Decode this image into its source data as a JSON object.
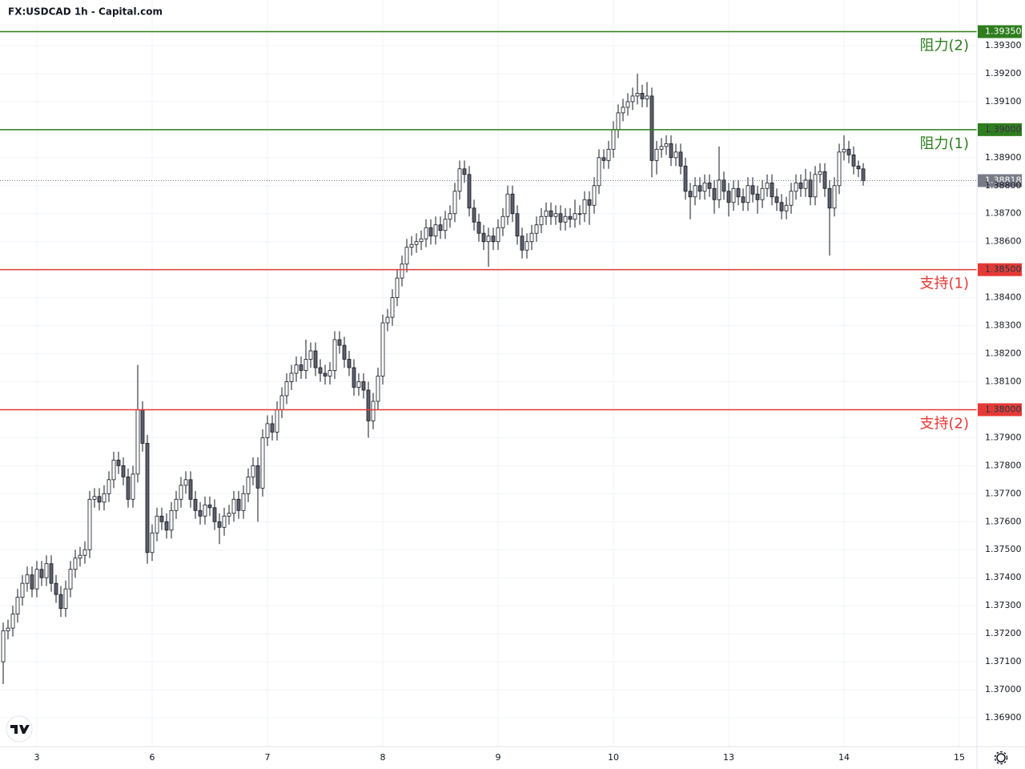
{
  "chart_data": {
    "type": "candlestick",
    "title": "FX:USDCAD 1h - Capital.com",
    "ylim": [
      1.36797,
      1.39463
    ],
    "yticks": [
      {
        "value": 1.369,
        "label": "1.36900"
      },
      {
        "value": 1.37,
        "label": "1.37000"
      },
      {
        "value": 1.371,
        "label": "1.37100"
      },
      {
        "value": 1.372,
        "label": "1.37200"
      },
      {
        "value": 1.373,
        "label": "1.37300"
      },
      {
        "value": 1.374,
        "label": "1.37400"
      },
      {
        "value": 1.375,
        "label": "1.37500"
      },
      {
        "value": 1.376,
        "label": "1.37600"
      },
      {
        "value": 1.377,
        "label": "1.37700"
      },
      {
        "value": 1.378,
        "label": "1.37800"
      },
      {
        "value": 1.379,
        "label": "1.37900"
      },
      {
        "value": 1.38,
        "label": "1.38000"
      },
      {
        "value": 1.381,
        "label": "1.38100"
      },
      {
        "value": 1.382,
        "label": "1.38200"
      },
      {
        "value": 1.383,
        "label": "1.38300"
      },
      {
        "value": 1.384,
        "label": "1.38400"
      },
      {
        "value": 1.385,
        "label": "1.38500"
      },
      {
        "value": 1.386,
        "label": "1.38600"
      },
      {
        "value": 1.387,
        "label": "1.38700"
      },
      {
        "value": 1.388,
        "label": "1.38800"
      },
      {
        "value": 1.389,
        "label": "1.38900"
      },
      {
        "value": 1.39,
        "label": "1.39000"
      },
      {
        "value": 1.391,
        "label": "1.39100"
      },
      {
        "value": 1.392,
        "label": "1.39200"
      },
      {
        "value": 1.393,
        "label": "1.39300"
      }
    ],
    "grid": true,
    "up_color": "#ffffff",
    "down_color": "#5d606b",
    "wick_color": "#131722",
    "categories": [
      null,
      null,
      null,
      null,
      null,
      null,
      null,
      "3",
      null,
      null,
      null,
      null,
      null,
      null,
      null,
      null,
      null,
      null,
      null,
      null,
      null,
      null,
      null,
      null,
      null,
      null,
      null,
      null,
      null,
      null,
      null,
      "6",
      null,
      null,
      null,
      null,
      null,
      null,
      null,
      null,
      null,
      null,
      null,
      null,
      null,
      null,
      null,
      null,
      null,
      null,
      null,
      null,
      null,
      null,
      null,
      "7",
      null,
      null,
      null,
      null,
      null,
      null,
      null,
      null,
      null,
      null,
      null,
      null,
      null,
      null,
      null,
      null,
      null,
      null,
      null,
      null,
      null,
      null,
      null,
      "8",
      null,
      null,
      null,
      null,
      null,
      null,
      null,
      null,
      null,
      null,
      null,
      null,
      null,
      null,
      null,
      null,
      null,
      null,
      null,
      null,
      null,
      null,
      null,
      "9",
      null,
      null,
      null,
      null,
      null,
      null,
      null,
      null,
      null,
      null,
      null,
      null,
      null,
      null,
      null,
      null,
      null,
      null,
      null,
      null,
      null,
      null,
      null,
      "10",
      null,
      null,
      null,
      null,
      null,
      null,
      null,
      null,
      null,
      null,
      null,
      null,
      null,
      null,
      null,
      null,
      null,
      null,
      null,
      null,
      null,
      null,
      null,
      "13",
      null,
      null,
      null,
      null,
      null,
      null,
      null,
      null,
      null,
      null,
      null,
      null,
      null,
      null,
      null,
      null,
      null,
      null,
      null,
      null,
      null,
      null,
      null,
      "14",
      null,
      null,
      null,
      null,
      null,
      null,
      null,
      null,
      null,
      null,
      null,
      null,
      null,
      null,
      null,
      null,
      null,
      null,
      null,
      null,
      null,
      null,
      null,
      "15"
    ],
    "ohlc": [
      [
        1.371,
        1.3724,
        1.3702,
        1.3721
      ],
      [
        1.3721,
        1.3725,
        1.3718,
        1.3722
      ],
      [
        1.3722,
        1.373,
        1.3719,
        1.3727
      ],
      [
        1.3727,
        1.3736,
        1.3724,
        1.3733
      ],
      [
        1.3733,
        1.3741,
        1.373,
        1.3738
      ],
      [
        1.3738,
        1.3744,
        1.3735,
        1.3741
      ],
      [
        1.3741,
        1.3744,
        1.3733,
        1.3736
      ],
      [
        1.3736,
        1.3746,
        1.3733,
        1.3743
      ],
      [
        1.3743,
        1.3746,
        1.3737,
        1.374
      ],
      [
        1.374,
        1.3748,
        1.3737,
        1.3745
      ],
      [
        1.3745,
        1.3748,
        1.3735,
        1.3738
      ],
      [
        1.3738,
        1.3741,
        1.3731,
        1.3734
      ],
      [
        1.3734,
        1.3737,
        1.3726,
        1.3729
      ],
      [
        1.3729,
        1.3739,
        1.3726,
        1.3736
      ],
      [
        1.3736,
        1.3746,
        1.3733,
        1.3743
      ],
      [
        1.3743,
        1.375,
        1.374,
        1.3747
      ],
      [
        1.3747,
        1.3751,
        1.3744,
        1.3748
      ],
      [
        1.3748,
        1.3753,
        1.3745,
        1.375
      ],
      [
        1.375,
        1.3771,
        1.3747,
        1.3768
      ],
      [
        1.3768,
        1.3772,
        1.3765,
        1.3769
      ],
      [
        1.3769,
        1.3772,
        1.3764,
        1.3767
      ],
      [
        1.3767,
        1.3773,
        1.3764,
        1.377
      ],
      [
        1.377,
        1.3778,
        1.3767,
        1.3775
      ],
      [
        1.3775,
        1.3785,
        1.3772,
        1.3782
      ],
      [
        1.3782,
        1.3785,
        1.3777,
        1.378
      ],
      [
        1.378,
        1.3783,
        1.3773,
        1.3776
      ],
      [
        1.3776,
        1.3779,
        1.3765,
        1.3768
      ],
      [
        1.3768,
        1.378,
        1.3765,
        1.3777
      ],
      [
        1.3777,
        1.3816,
        1.3774,
        1.38
      ],
      [
        1.38,
        1.3803,
        1.3785,
        1.3788
      ],
      [
        1.3788,
        1.3791,
        1.3745,
        1.3749
      ],
      [
        1.3749,
        1.3759,
        1.3746,
        1.3756
      ],
      [
        1.3756,
        1.3765,
        1.3753,
        1.3762
      ],
      [
        1.3762,
        1.3765,
        1.3757,
        1.376
      ],
      [
        1.376,
        1.3763,
        1.3754,
        1.3757
      ],
      [
        1.3757,
        1.3767,
        1.3754,
        1.3764
      ],
      [
        1.3764,
        1.3771,
        1.3761,
        1.3768
      ],
      [
        1.3768,
        1.3776,
        1.3765,
        1.3773
      ],
      [
        1.3773,
        1.3778,
        1.377,
        1.3775
      ],
      [
        1.3775,
        1.3778,
        1.3765,
        1.3768
      ],
      [
        1.3768,
        1.3771,
        1.3761,
        1.3764
      ],
      [
        1.3764,
        1.3767,
        1.3759,
        1.3762
      ],
      [
        1.3762,
        1.3769,
        1.3759,
        1.3766
      ],
      [
        1.3766,
        1.3769,
        1.3762,
        1.3765
      ],
      [
        1.3765,
        1.3768,
        1.3757,
        1.376
      ],
      [
        1.376,
        1.3763,
        1.3752,
        1.3758
      ],
      [
        1.3758,
        1.3765,
        1.3755,
        1.3762
      ],
      [
        1.3762,
        1.3766,
        1.3759,
        1.3763
      ],
      [
        1.3763,
        1.3771,
        1.376,
        1.3768
      ],
      [
        1.3768,
        1.3771,
        1.3761,
        1.3764
      ],
      [
        1.3764,
        1.3773,
        1.3761,
        1.377
      ],
      [
        1.377,
        1.3779,
        1.3767,
        1.3776
      ],
      [
        1.3776,
        1.3783,
        1.3773,
        1.378
      ],
      [
        1.378,
        1.3783,
        1.376,
        1.3772
      ],
      [
        1.3772,
        1.3793,
        1.3769,
        1.379
      ],
      [
        1.379,
        1.3798,
        1.3787,
        1.3795
      ],
      [
        1.3795,
        1.3798,
        1.3789,
        1.3792
      ],
      [
        1.3792,
        1.3803,
        1.3789,
        1.38
      ],
      [
        1.38,
        1.3808,
        1.3797,
        1.3805
      ],
      [
        1.3805,
        1.3813,
        1.3802,
        1.381
      ],
      [
        1.381,
        1.3816,
        1.3807,
        1.3813
      ],
      [
        1.3813,
        1.3819,
        1.381,
        1.3816
      ],
      [
        1.3816,
        1.3819,
        1.3811,
        1.3814
      ],
      [
        1.3814,
        1.3825,
        1.3811,
        1.3818
      ],
      [
        1.3818,
        1.3824,
        1.3815,
        1.3821
      ],
      [
        1.3821,
        1.3824,
        1.3812,
        1.3815
      ],
      [
        1.3815,
        1.3818,
        1.381,
        1.3813
      ],
      [
        1.3813,
        1.3816,
        1.3809,
        1.3812
      ],
      [
        1.3812,
        1.3817,
        1.3809,
        1.3814
      ],
      [
        1.3814,
        1.3828,
        1.3811,
        1.3825
      ],
      [
        1.3825,
        1.3828,
        1.382,
        1.3823
      ],
      [
        1.3823,
        1.3826,
        1.3815,
        1.3818
      ],
      [
        1.3818,
        1.3821,
        1.3812,
        1.3815
      ],
      [
        1.3815,
        1.3818,
        1.3805,
        1.3808
      ],
      [
        1.3808,
        1.3813,
        1.3805,
        1.381
      ],
      [
        1.381,
        1.3813,
        1.3804,
        1.3807
      ],
      [
        1.3807,
        1.381,
        1.379,
        1.3796
      ],
      [
        1.3796,
        1.3806,
        1.3793,
        1.3803
      ],
      [
        1.3803,
        1.3815,
        1.38,
        1.3812
      ],
      [
        1.3812,
        1.3834,
        1.3809,
        1.3831
      ],
      [
        1.3831,
        1.3836,
        1.3828,
        1.3833
      ],
      [
        1.3833,
        1.3843,
        1.383,
        1.384
      ],
      [
        1.384,
        1.385,
        1.3837,
        1.3847
      ],
      [
        1.3847,
        1.3855,
        1.3844,
        1.3852
      ],
      [
        1.3852,
        1.3861,
        1.3849,
        1.3858
      ],
      [
        1.3858,
        1.3862,
        1.3855,
        1.3859
      ],
      [
        1.3859,
        1.3863,
        1.3856,
        1.386
      ],
      [
        1.386,
        1.3864,
        1.3857,
        1.3861
      ],
      [
        1.3861,
        1.3868,
        1.3858,
        1.3865
      ],
      [
        1.3865,
        1.3868,
        1.3859,
        1.3862
      ],
      [
        1.3862,
        1.3869,
        1.3859,
        1.3866
      ],
      [
        1.3866,
        1.3869,
        1.3861,
        1.3864
      ],
      [
        1.3864,
        1.3871,
        1.3861,
        1.3868
      ],
      [
        1.3868,
        1.3873,
        1.3865,
        1.387
      ],
      [
        1.387,
        1.3881,
        1.3867,
        1.3878
      ],
      [
        1.3878,
        1.3889,
        1.3875,
        1.3886
      ],
      [
        1.3886,
        1.3889,
        1.3881,
        1.3884
      ],
      [
        1.3884,
        1.3887,
        1.3869,
        1.3872
      ],
      [
        1.3872,
        1.3875,
        1.3864,
        1.3867
      ],
      [
        1.3867,
        1.387,
        1.386,
        1.3863
      ],
      [
        1.3863,
        1.3866,
        1.3857,
        1.386
      ],
      [
        1.386,
        1.3865,
        1.3851,
        1.3862
      ],
      [
        1.3862,
        1.3865,
        1.3857,
        1.386
      ],
      [
        1.386,
        1.3868,
        1.3857,
        1.3865
      ],
      [
        1.3865,
        1.3872,
        1.3862,
        1.3869
      ],
      [
        1.3869,
        1.388,
        1.3866,
        1.3877
      ],
      [
        1.3877,
        1.388,
        1.3867,
        1.387
      ],
      [
        1.387,
        1.3873,
        1.3859,
        1.3862
      ],
      [
        1.3862,
        1.3865,
        1.3854,
        1.3857
      ],
      [
        1.3857,
        1.3863,
        1.3854,
        1.386
      ],
      [
        1.386,
        1.3866,
        1.3857,
        1.3863
      ],
      [
        1.3863,
        1.3869,
        1.386,
        1.3866
      ],
      [
        1.3866,
        1.3872,
        1.3863,
        1.3869
      ],
      [
        1.3869,
        1.3874,
        1.3866,
        1.3871
      ],
      [
        1.3871,
        1.3874,
        1.3866,
        1.3869
      ],
      [
        1.3869,
        1.3873,
        1.3866,
        1.387
      ],
      [
        1.387,
        1.3873,
        1.3864,
        1.3867
      ],
      [
        1.3867,
        1.3872,
        1.3864,
        1.3869
      ],
      [
        1.3869,
        1.3872,
        1.3865,
        1.3868
      ],
      [
        1.3868,
        1.3875,
        1.3865,
        1.387
      ],
      [
        1.387,
        1.3873,
        1.3866,
        1.387
      ],
      [
        1.387,
        1.3878,
        1.3867,
        1.3875
      ],
      [
        1.3875,
        1.3878,
        1.3866,
        1.3873
      ],
      [
        1.3873,
        1.3883,
        1.387,
        1.388
      ],
      [
        1.388,
        1.3893,
        1.3877,
        1.389
      ],
      [
        1.389,
        1.3893,
        1.3886,
        1.3889
      ],
      [
        1.3889,
        1.3896,
        1.3886,
        1.3893
      ],
      [
        1.3893,
        1.3903,
        1.389,
        1.39
      ],
      [
        1.39,
        1.3909,
        1.3897,
        1.3906
      ],
      [
        1.3906,
        1.3911,
        1.3903,
        1.3908
      ],
      [
        1.3908,
        1.3913,
        1.3905,
        1.391
      ],
      [
        1.391,
        1.3915,
        1.3907,
        1.3912
      ],
      [
        1.3912,
        1.392,
        1.3909,
        1.3913
      ],
      [
        1.3913,
        1.3916,
        1.3908,
        1.3911
      ],
      [
        1.3911,
        1.3917,
        1.3908,
        1.3912
      ],
      [
        1.3912,
        1.3915,
        1.3883,
        1.3889
      ],
      [
        1.3889,
        1.3896,
        1.3884,
        1.3893
      ],
      [
        1.3893,
        1.3897,
        1.389,
        1.3894
      ],
      [
        1.3894,
        1.3898,
        1.3891,
        1.3895
      ],
      [
        1.3895,
        1.3898,
        1.3887,
        1.389
      ],
      [
        1.389,
        1.3895,
        1.3887,
        1.3892
      ],
      [
        1.3892,
        1.3895,
        1.3884,
        1.3887
      ],
      [
        1.3887,
        1.389,
        1.3875,
        1.3878
      ],
      [
        1.3878,
        1.3881,
        1.3868,
        1.3876
      ],
      [
        1.3876,
        1.3883,
        1.3873,
        1.388
      ],
      [
        1.388,
        1.3883,
        1.3875,
        1.3878
      ],
      [
        1.3878,
        1.3884,
        1.3875,
        1.3881
      ],
      [
        1.3881,
        1.3884,
        1.3876,
        1.3879
      ],
      [
        1.3879,
        1.3882,
        1.387,
        1.3875
      ],
      [
        1.3875,
        1.3894,
        1.3872,
        1.3882
      ],
      [
        1.3882,
        1.3885,
        1.3875,
        1.3878
      ],
      [
        1.3878,
        1.3881,
        1.3869,
        1.3874
      ],
      [
        1.3874,
        1.3882,
        1.3871,
        1.3879
      ],
      [
        1.3879,
        1.3882,
        1.3873,
        1.3876
      ],
      [
        1.3876,
        1.3879,
        1.3871,
        1.3874
      ],
      [
        1.3874,
        1.3883,
        1.3871,
        1.388
      ],
      [
        1.388,
        1.3883,
        1.3874,
        1.3877
      ],
      [
        1.3877,
        1.388,
        1.387,
        1.3875
      ],
      [
        1.3875,
        1.3882,
        1.3872,
        1.3879
      ],
      [
        1.3879,
        1.3884,
        1.3876,
        1.3881
      ],
      [
        1.3881,
        1.3884,
        1.3873,
        1.3876
      ],
      [
        1.3876,
        1.3879,
        1.3871,
        1.3874
      ],
      [
        1.3874,
        1.3877,
        1.3868,
        1.3871
      ],
      [
        1.3871,
        1.3876,
        1.3868,
        1.3873
      ],
      [
        1.3873,
        1.3881,
        1.387,
        1.3878
      ],
      [
        1.3878,
        1.3884,
        1.3875,
        1.3881
      ],
      [
        1.3881,
        1.3884,
        1.3876,
        1.3879
      ],
      [
        1.3879,
        1.3886,
        1.3876,
        1.3882
      ],
      [
        1.3882,
        1.3885,
        1.3873,
        1.3876
      ],
      [
        1.3876,
        1.3887,
        1.3873,
        1.3884
      ],
      [
        1.3884,
        1.3888,
        1.3881,
        1.3885
      ],
      [
        1.3885,
        1.3888,
        1.3876,
        1.3879
      ],
      [
        1.3879,
        1.3882,
        1.3855,
        1.3872
      ],
      [
        1.3872,
        1.3883,
        1.3869,
        1.388
      ],
      [
        1.388,
        1.3895,
        1.3877,
        1.3892
      ],
      [
        1.3892,
        1.3898,
        1.3889,
        1.3893
      ],
      [
        1.3893,
        1.3896,
        1.3888,
        1.3891
      ],
      [
        1.3891,
        1.3894,
        1.3884,
        1.3887
      ],
      [
        1.3887,
        1.3889,
        1.3883,
        1.3886
      ],
      [
        1.3886,
        1.3888,
        1.388,
        1.38818
      ],
      null,
      null,
      null,
      null,
      null,
      null,
      null,
      null,
      null,
      null,
      null,
      null,
      null,
      null,
      null,
      null,
      null,
      null,
      null,
      null
    ],
    "levels": [
      {
        "name": "阻力(2)",
        "value": 1.3935,
        "value_label": "1.39350",
        "color": "#2e7d1e"
      },
      {
        "name": "阻力(1)",
        "value": 1.39,
        "value_label": "1.39000",
        "color": "#2e7d1e"
      },
      {
        "name": "支持(1)",
        "value": 1.385,
        "value_label": "1.38500",
        "color": "#e53935"
      },
      {
        "name": "支持(2)",
        "value": 1.38,
        "value_label": "1.38000",
        "color": "#e53935"
      }
    ],
    "last_price": {
      "value": 1.38818,
      "value_label": "1.38818",
      "color": "#787b86"
    }
  }
}
